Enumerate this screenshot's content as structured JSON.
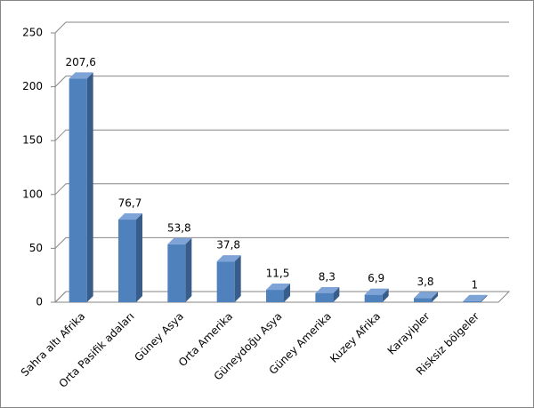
{
  "chart_data": {
    "type": "bar3d",
    "categories": [
      "Sahra altı Afrika",
      "Orta Pasifik adaları",
      "Güney Asya",
      "Orta Amerika",
      "Güneydoğu Asya",
      "Güney Amerika",
      "Kuzey Afrika",
      "Karayipler",
      "Risksiz bölgeler"
    ],
    "values": [
      207.6,
      76.7,
      53.8,
      37.8,
      11.5,
      8.3,
      6.9,
      3.8,
      1
    ],
    "value_labels": [
      "207,6",
      "76,7",
      "53,8",
      "37,8",
      "11,5",
      "8,3",
      "6,9",
      "3,8",
      "1"
    ],
    "color": "#4f81bd",
    "ylim": [
      0,
      250
    ],
    "yticks": [
      0,
      50,
      100,
      150,
      200,
      250
    ],
    "grid": true
  }
}
